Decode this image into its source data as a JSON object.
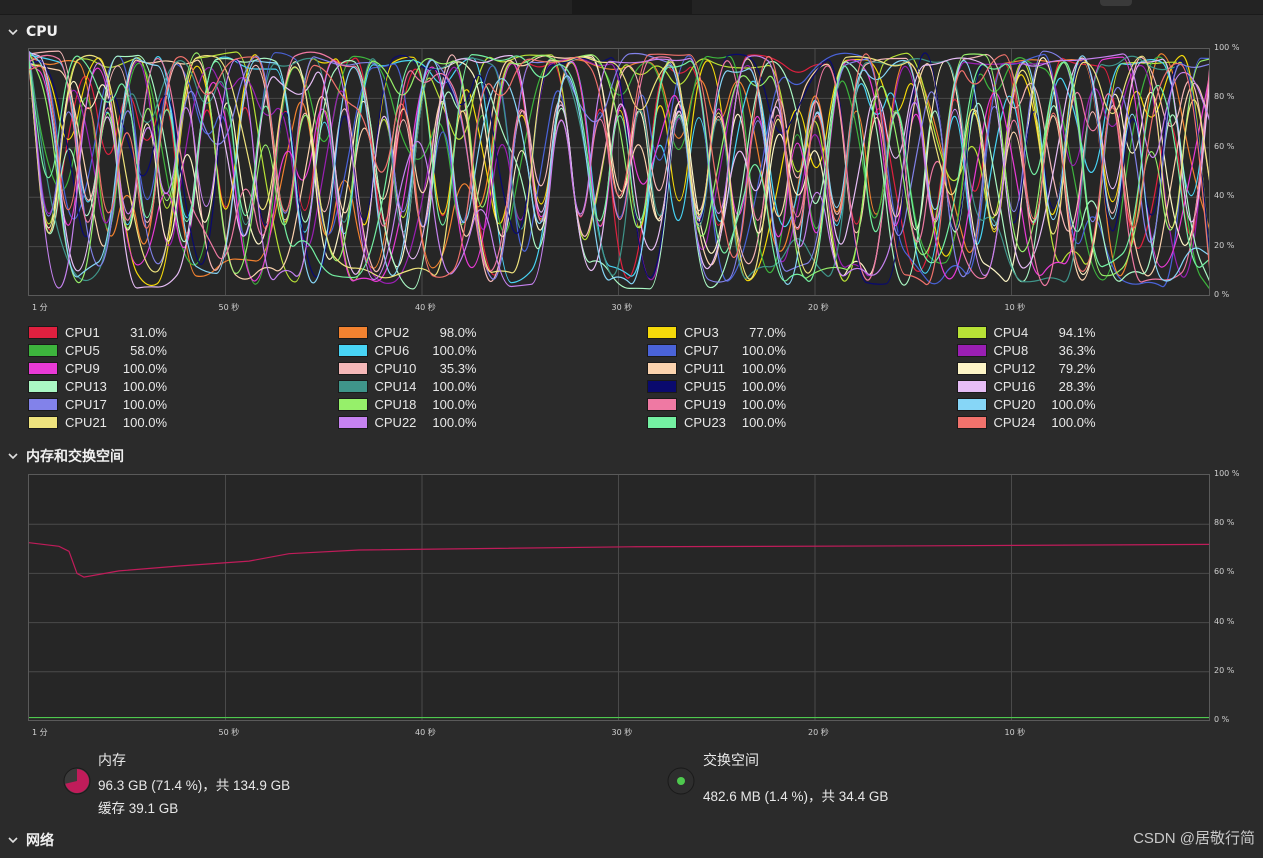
{
  "sections": {
    "cpu": {
      "title": "CPU"
    },
    "memory": {
      "title": "内存和交换空间"
    },
    "network": {
      "title": "网络"
    }
  },
  "axes": {
    "y_ticks": [
      "100 %",
      "80 %",
      "60 %",
      "40 %",
      "20 %",
      "0 %"
    ],
    "x_ticks": [
      "1 分",
      "50 秒",
      "40 秒",
      "30 秒",
      "20 秒",
      "10 秒"
    ]
  },
  "cpus": [
    {
      "name": "CPU1",
      "value": "31.0%",
      "color": "#e0203f"
    },
    {
      "name": "CPU2",
      "value": "98.0%",
      "color": "#f28230"
    },
    {
      "name": "CPU3",
      "value": "77.0%",
      "color": "#f5d90a"
    },
    {
      "name": "CPU4",
      "value": "94.1%",
      "color": "#b8e236"
    },
    {
      "name": "CPU5",
      "value": "58.0%",
      "color": "#3db43d"
    },
    {
      "name": "CPU6",
      "value": "100.0%",
      "color": "#48d4f5"
    },
    {
      "name": "CPU7",
      "value": "100.0%",
      "color": "#4a63d8"
    },
    {
      "name": "CPU8",
      "value": "36.3%",
      "color": "#9a1fb3"
    },
    {
      "name": "CPU9",
      "value": "100.0%",
      "color": "#e93ad6"
    },
    {
      "name": "CPU10",
      "value": "35.3%",
      "color": "#f5b8b8"
    },
    {
      "name": "CPU11",
      "value": "100.0%",
      "color": "#fbd3ae"
    },
    {
      "name": "CPU12",
      "value": "79.2%",
      "color": "#fdf5c6"
    },
    {
      "name": "CPU13",
      "value": "100.0%",
      "color": "#aaf8c4"
    },
    {
      "name": "CPU14",
      "value": "100.0%",
      "color": "#3f958a"
    },
    {
      "name": "CPU15",
      "value": "100.0%",
      "color": "#0a0a6e"
    },
    {
      "name": "CPU16",
      "value": "28.3%",
      "color": "#e7bdf6"
    },
    {
      "name": "CPU17",
      "value": "100.0%",
      "color": "#8282ea"
    },
    {
      "name": "CPU18",
      "value": "100.0%",
      "color": "#96f06a"
    },
    {
      "name": "CPU19",
      "value": "100.0%",
      "color": "#ef79a3"
    },
    {
      "name": "CPU20",
      "value": "100.0%",
      "color": "#86d6f7"
    },
    {
      "name": "CPU21",
      "value": "100.0%",
      "color": "#efe37d"
    },
    {
      "name": "CPU22",
      "value": "100.0%",
      "color": "#c682f0"
    },
    {
      "name": "CPU23",
      "value": "100.0%",
      "color": "#74f0a2"
    },
    {
      "name": "CPU24",
      "value": "100.0%",
      "color": "#f1726c"
    }
  ],
  "memory": {
    "label": "内存",
    "usage_text": "96.3 GB (71.4 %)，共 134.9 GB",
    "cache_text": "缓存 39.1 GB",
    "percent": 71.4,
    "color": "#c01c5a"
  },
  "swap": {
    "label": "交换空间",
    "usage_text": "482.6 MB (1.4 %)，共 34.4 GB",
    "percent": 1.4,
    "color": "#4ec94e"
  },
  "watermark": "CSDN @居敬行简"
}
